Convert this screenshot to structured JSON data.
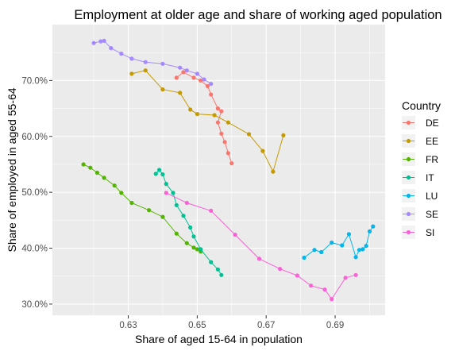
{
  "chart_data": {
    "type": "line",
    "title": "Employment at older age and share of working aged population",
    "xlabel": "Share of aged 15-64 in population",
    "ylabel": "Share of employed in aged 55-64",
    "xlim": [
      0.608,
      0.7045
    ],
    "ylim": [
      0.28,
      0.8
    ],
    "x_ticks": [
      0.63,
      0.65,
      0.67,
      0.69
    ],
    "x_tick_labels": [
      "0.63",
      "0.65",
      "0.67",
      "0.69"
    ],
    "y_ticks": [
      0.3,
      0.4,
      0.5,
      0.6,
      0.7
    ],
    "y_tick_labels": [
      "30.0%",
      "40.0%",
      "50.0%",
      "60.0%",
      "70.0%"
    ],
    "grid": true,
    "panel_color": "#ebebeb",
    "legend": {
      "title": "Country",
      "placement": "right",
      "entries": [
        "DE",
        "EE",
        "FR",
        "IT",
        "LU",
        "SE",
        "SI"
      ]
    },
    "series": [
      {
        "name": "DE",
        "color": "#F8766D",
        "points": [
          [
            0.644,
            0.705
          ],
          [
            0.646,
            0.715
          ],
          [
            0.649,
            0.705
          ],
          [
            0.651,
            0.7
          ],
          [
            0.653,
            0.69
          ],
          [
            0.654,
            0.675
          ],
          [
            0.656,
            0.65
          ],
          [
            0.657,
            0.645
          ],
          [
            0.656,
            0.625
          ],
          [
            0.657,
            0.605
          ],
          [
            0.658,
            0.59
          ],
          [
            0.659,
            0.57
          ],
          [
            0.66,
            0.552
          ]
        ]
      },
      {
        "name": "EE",
        "color": "#C49A00",
        "points": [
          [
            0.631,
            0.712
          ],
          [
            0.635,
            0.718
          ],
          [
            0.64,
            0.684
          ],
          [
            0.645,
            0.678
          ],
          [
            0.648,
            0.648
          ],
          [
            0.65,
            0.64
          ],
          [
            0.655,
            0.638
          ],
          [
            0.659,
            0.625
          ],
          [
            0.665,
            0.604
          ],
          [
            0.669,
            0.574
          ],
          [
            0.672,
            0.537
          ],
          [
            0.675,
            0.602
          ]
        ]
      },
      {
        "name": "FR",
        "color": "#53B400",
        "points": [
          [
            0.617,
            0.55
          ],
          [
            0.619,
            0.544
          ],
          [
            0.621,
            0.535
          ],
          [
            0.623,
            0.526
          ],
          [
            0.626,
            0.512
          ],
          [
            0.628,
            0.499
          ],
          [
            0.631,
            0.481
          ],
          [
            0.636,
            0.468
          ],
          [
            0.64,
            0.456
          ],
          [
            0.644,
            0.426
          ],
          [
            0.647,
            0.409
          ],
          [
            0.649,
            0.401
          ],
          [
            0.65,
            0.398
          ],
          [
            0.651,
            0.394
          ]
        ]
      },
      {
        "name": "IT",
        "color": "#00C094",
        "points": [
          [
            0.638,
            0.533
          ],
          [
            0.639,
            0.54
          ],
          [
            0.64,
            0.532
          ],
          [
            0.641,
            0.515
          ],
          [
            0.643,
            0.499
          ],
          [
            0.644,
            0.477
          ],
          [
            0.646,
            0.458
          ],
          [
            0.648,
            0.437
          ],
          [
            0.649,
            0.421
          ],
          [
            0.651,
            0.398
          ],
          [
            0.654,
            0.375
          ],
          [
            0.656,
            0.362
          ],
          [
            0.657,
            0.352
          ]
        ]
      },
      {
        "name": "LU",
        "color": "#00B6EB",
        "points": [
          [
            0.681,
            0.383
          ],
          [
            0.684,
            0.397
          ],
          [
            0.686,
            0.393
          ],
          [
            0.689,
            0.41
          ],
          [
            0.692,
            0.405
          ],
          [
            0.694,
            0.425
          ],
          [
            0.696,
            0.384
          ],
          [
            0.697,
            0.397
          ],
          [
            0.698,
            0.398
          ],
          [
            0.699,
            0.404
          ],
          [
            0.7,
            0.43
          ],
          [
            0.701,
            0.439
          ]
        ]
      },
      {
        "name": "SE",
        "color": "#A58AFF",
        "points": [
          [
            0.62,
            0.767
          ],
          [
            0.622,
            0.77
          ],
          [
            0.623,
            0.771
          ],
          [
            0.625,
            0.758
          ],
          [
            0.628,
            0.748
          ],
          [
            0.631,
            0.739
          ],
          [
            0.635,
            0.733
          ],
          [
            0.64,
            0.73
          ],
          [
            0.645,
            0.723
          ],
          [
            0.647,
            0.718
          ],
          [
            0.65,
            0.712
          ],
          [
            0.652,
            0.702
          ],
          [
            0.654,
            0.694
          ]
        ]
      },
      {
        "name": "SI",
        "color": "#FB61D7",
        "points": [
          [
            0.641,
            0.499
          ],
          [
            0.647,
            0.481
          ],
          [
            0.654,
            0.467
          ],
          [
            0.661,
            0.424
          ],
          [
            0.668,
            0.381
          ],
          [
            0.674,
            0.363
          ],
          [
            0.679,
            0.351
          ],
          [
            0.683,
            0.333
          ],
          [
            0.687,
            0.326
          ],
          [
            0.689,
            0.309
          ],
          [
            0.693,
            0.347
          ],
          [
            0.696,
            0.352
          ]
        ]
      }
    ]
  }
}
